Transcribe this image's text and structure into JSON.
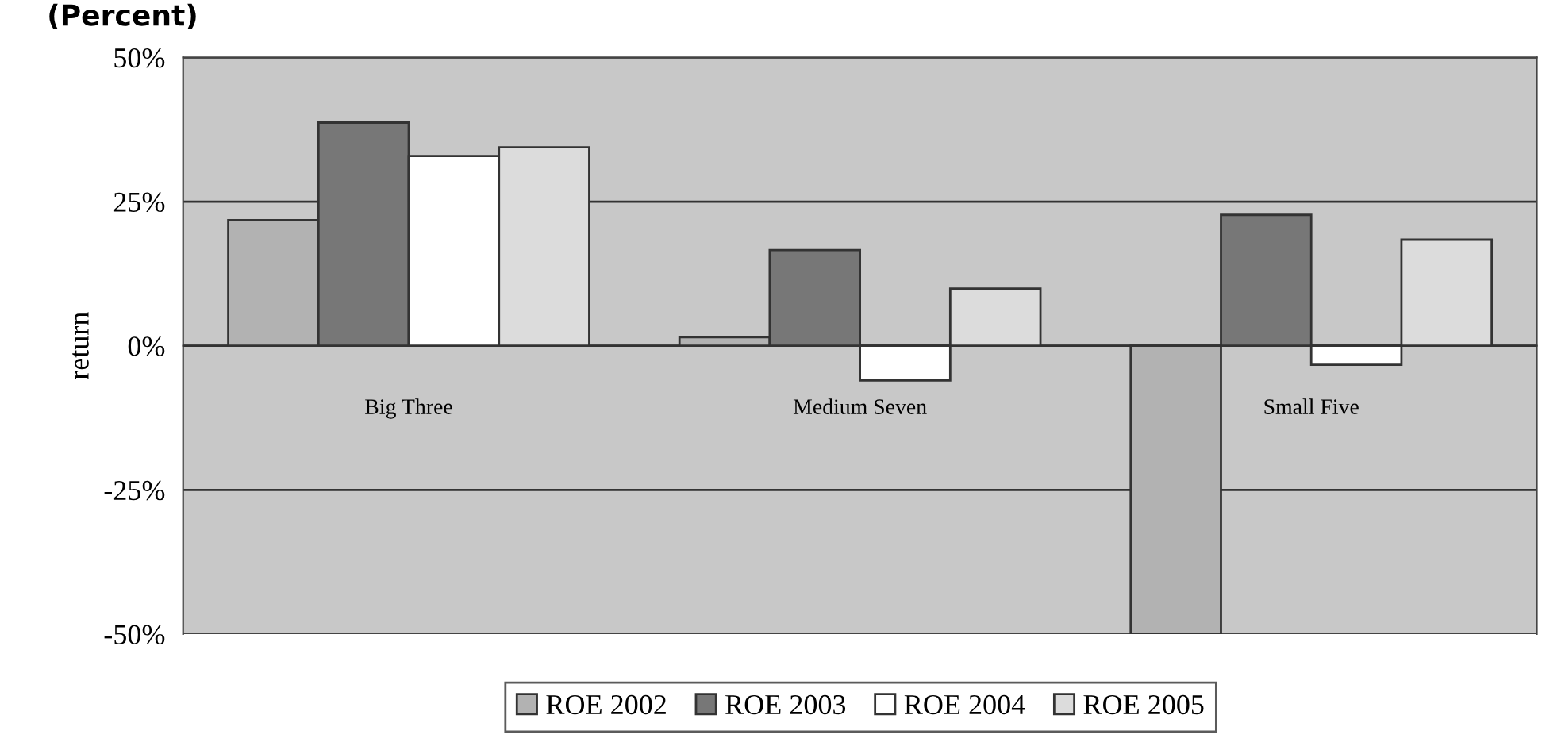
{
  "chart_data": {
    "type": "bar",
    "title": "(Percent)",
    "ylabel": "return",
    "categories": [
      "Big Three",
      "Medium Seven",
      "Small Five"
    ],
    "series": [
      {
        "name": "ROE 2002",
        "color": "#b2b2b2",
        "values": [
          21.8,
          1.5,
          -50
        ]
      },
      {
        "name": "ROE 2003",
        "color": "#777777",
        "values": [
          38.7,
          16.6,
          22.7
        ]
      },
      {
        "name": "ROE 2004",
        "color": "#ffffff",
        "values": [
          32.9,
          -6.0,
          -3.3
        ]
      },
      {
        "name": "ROE 2005",
        "color": "#dcdcdc",
        "values": [
          34.4,
          9.9,
          18.4
        ]
      }
    ],
    "ylim": [
      -50,
      50
    ],
    "yticks": [
      {
        "value": -50,
        "label": "-50%"
      },
      {
        "value": -25,
        "label": "-25%"
      },
      {
        "value": 0,
        "label": "0%"
      },
      {
        "value": 25,
        "label": "25%"
      },
      {
        "value": 50,
        "label": "50%"
      }
    ],
    "grid": "y",
    "legend": "bottom"
  }
}
